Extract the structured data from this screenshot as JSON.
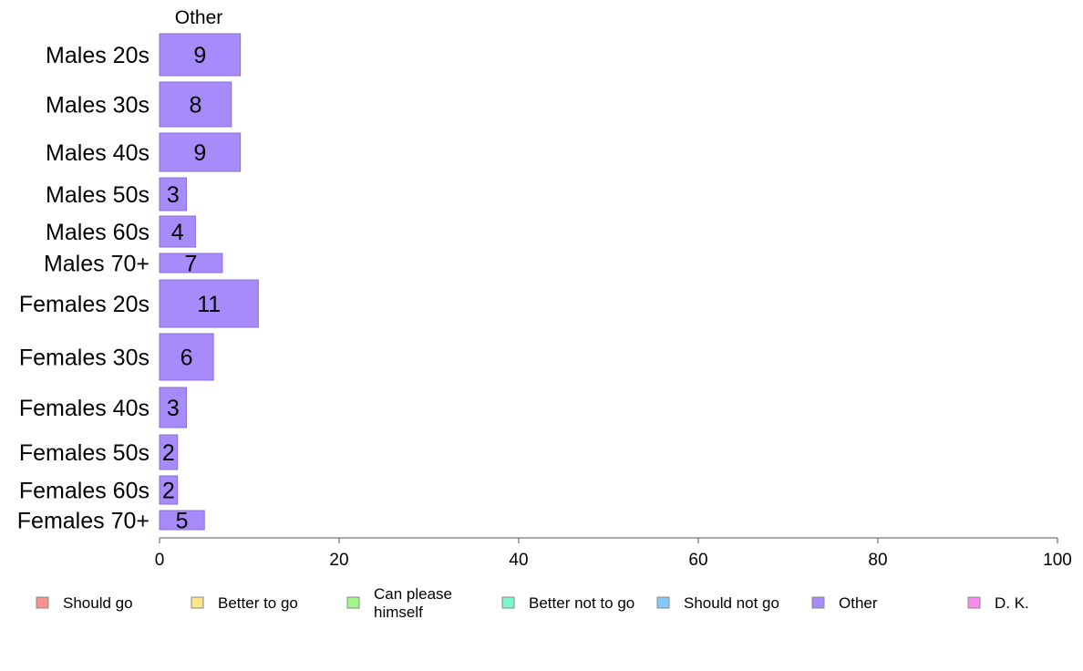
{
  "chart_data": {
    "type": "bar",
    "orientation": "horizontal",
    "title": "Other",
    "categories": [
      "Males 20s",
      "Males 30s",
      "Males 40s",
      "Males 50s",
      "Males 60s",
      "Males 70+",
      "Females 20s",
      "Females 30s",
      "Females 40s",
      "Females 50s",
      "Females 60s",
      "Females 70+"
    ],
    "values": [
      9,
      8,
      9,
      3,
      4,
      7,
      11,
      6,
      3,
      2,
      2,
      5
    ],
    "bar_value_labels": [
      "9",
      "8",
      "9",
      "3",
      "4",
      "7",
      "11",
      "6",
      "3",
      "2",
      "2",
      "5"
    ],
    "xlim": [
      0,
      100
    ],
    "xticks": [
      "0",
      "20",
      "40",
      "60",
      "80",
      "100"
    ],
    "grid": false,
    "bar_color": "#a78bfa",
    "legend_placement": "bottom",
    "legend": [
      {
        "label": "Should go",
        "color": "#f9908b"
      },
      {
        "label": "Better to go",
        "color": "#fde68a"
      },
      {
        "label": "Can please himself",
        "label_lines": [
          "Can please",
          "himself"
        ],
        "color": "#a3f78a"
      },
      {
        "label": "Better not to go",
        "color": "#7ff5cc"
      },
      {
        "label": "Should not go",
        "color": "#85c8f7"
      },
      {
        "label": "Other",
        "color": "#a78bfa"
      },
      {
        "label": "D. K.",
        "color": "#f98bf0"
      }
    ]
  }
}
